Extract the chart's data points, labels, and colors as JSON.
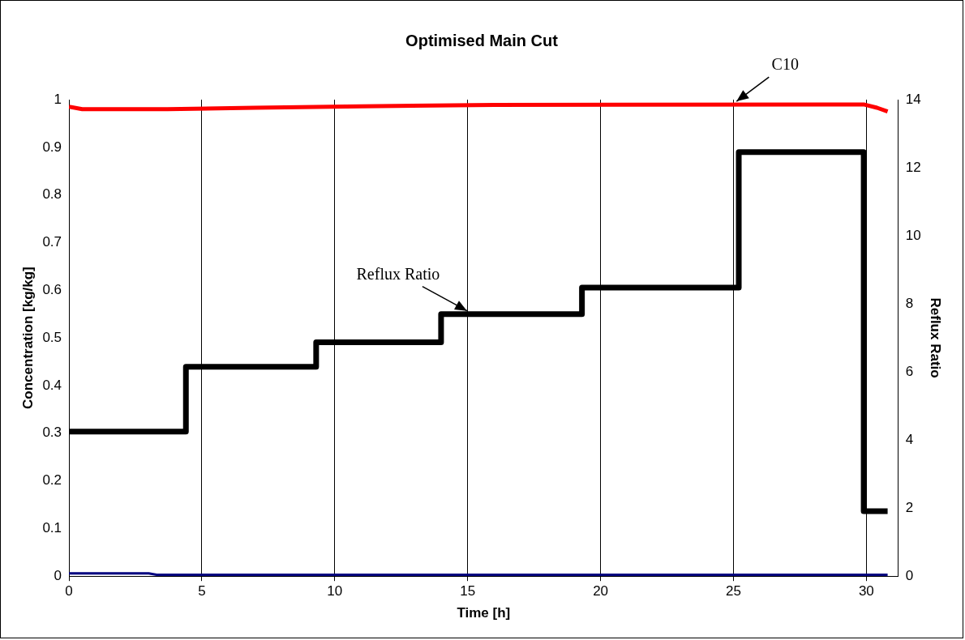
{
  "chart_data": {
    "type": "line",
    "title": "Optimised Main Cut",
    "xlabel": "Time [h]",
    "ylabel": "Concentration [kg/kg]",
    "y2label": "Reflux Ratio",
    "series": [
      {
        "name": "C10",
        "color": "#ff0000",
        "x": [
          0,
          0.5,
          3.7,
          7,
          11,
          16,
          29.9,
          30.4,
          30.8
        ],
        "values": [
          0.985,
          0.98,
          0.98,
          0.983,
          0.986,
          0.989,
          0.99,
          0.983,
          0.975
        ]
      },
      {
        "color": "#000080",
        "x": [
          0,
          3,
          3.3,
          30.8
        ],
        "values": [
          0.006,
          0.006,
          0.003,
          0.003
        ]
      },
      {
        "name": "Reflux Ratio",
        "type": "step",
        "axis": "y2",
        "color": "#000000",
        "x": [
          0,
          4.4,
          9.3,
          14.0,
          19.3,
          25.2,
          29.9,
          30.8
        ],
        "values": [
          4.25,
          6.15,
          6.87,
          7.7,
          8.48,
          12.46,
          1.91,
          1.91
        ]
      }
    ],
    "xlim": [
      0,
      31.2
    ],
    "xticks": [
      0,
      5,
      10,
      15,
      20,
      25,
      30
    ],
    "ylim": [
      0,
      1
    ],
    "yticks": [
      0,
      0.1,
      0.2,
      0.3,
      0.4,
      0.5,
      0.6,
      0.7,
      0.8,
      0.9,
      1
    ],
    "y2lim": [
      0,
      14
    ],
    "y2ticks": [
      0,
      2,
      4,
      6,
      8,
      10,
      12,
      14
    ],
    "grid": "x",
    "legend": false,
    "marker": "none",
    "line_style": "solid"
  }
}
